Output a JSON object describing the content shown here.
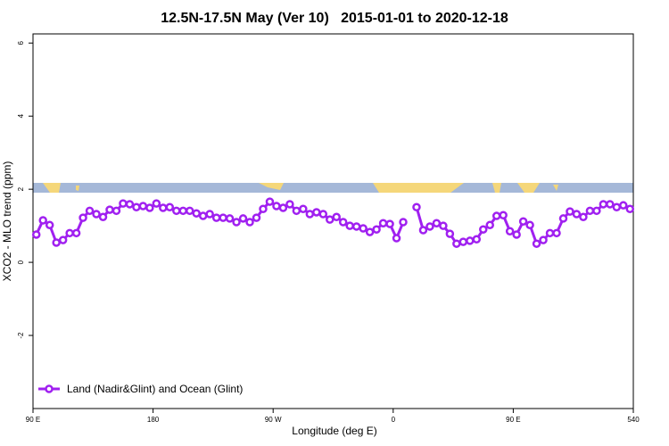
{
  "chart_data": {
    "type": "line",
    "title": "12.5N-17.5N May (Ver 10)   2015-01-01 to 2020-12-18",
    "xlabel": "Longitude (deg E)",
    "ylabel": "XCO2 - MLO trend (ppm)",
    "x": [
      92.5,
      97.5,
      102.5,
      107.5,
      112.5,
      117.5,
      122.5,
      127.5,
      132.5,
      137.5,
      142.5,
      147.5,
      152.5,
      157.5,
      162.5,
      167.5,
      172.5,
      177.5,
      182.5,
      187.5,
      192.5,
      197.5,
      202.5,
      207.5,
      212.5,
      217.5,
      222.5,
      227.5,
      232.5,
      237.5,
      242.5,
      247.5,
      252.5,
      257.5,
      262.5,
      267.5,
      272.5,
      277.5,
      282.5,
      287.5,
      292.5,
      297.5,
      302.5,
      307.5,
      312.5,
      317.5,
      322.5,
      327.5,
      332.5,
      337.5,
      342.5,
      347.5,
      352.5,
      357.5,
      362.5,
      367.5,
      372.5,
      377.5,
      382.5,
      387.5,
      392.5,
      397.5,
      402.5,
      407.5,
      412.5,
      417.5,
      422.5,
      427.5,
      432.5,
      437.5,
      442.5,
      447.5,
      452.5,
      457.5,
      462.5,
      467.5,
      472.5,
      477.5,
      482.5,
      487.5,
      492.5,
      497.5,
      502.5,
      507.5,
      512.5,
      517.5,
      522.5,
      527.5,
      532.5,
      537.5
    ],
    "series": [
      {
        "name": "Land (Nadir&Glint) and Ocean (Glint)",
        "color": "#a020f0",
        "values": [
          0.76,
          1.15,
          1.02,
          0.54,
          0.61,
          0.8,
          0.8,
          1.22,
          1.41,
          1.32,
          1.24,
          1.44,
          1.41,
          1.61,
          1.59,
          1.51,
          1.54,
          1.49,
          1.61,
          1.49,
          1.51,
          1.41,
          1.41,
          1.41,
          1.34,
          1.27,
          1.32,
          1.22,
          1.22,
          1.2,
          1.1,
          1.2,
          1.1,
          1.22,
          1.46,
          1.66,
          1.54,
          1.49,
          1.59,
          1.41,
          1.46,
          1.32,
          1.37,
          1.32,
          1.17,
          1.24,
          1.1,
          1.0,
          0.98,
          0.93,
          0.83,
          0.9,
          1.07,
          1.05,
          0.66,
          1.1,
          null,
          1.51,
          0.88,
          0.98,
          1.07,
          1.0,
          0.78,
          0.51,
          0.56,
          0.59,
          0.63,
          0.9,
          1.02,
          1.27,
          1.29,
          0.85,
          0.76,
          1.12,
          1.02,
          0.51,
          0.61,
          0.8,
          0.8,
          1.2,
          1.39,
          1.32,
          1.24,
          1.41,
          1.41,
          1.59,
          1.59,
          1.51,
          1.56,
          1.46
        ]
      }
    ],
    "xlim": [
      90,
      540
    ],
    "xticks": [
      {
        "value": 90,
        "label": "90 E"
      },
      180,
      {
        "value": 270,
        "label": "90 W"
      },
      {
        "value": 360,
        "label": "0"
      },
      {
        "value": 450,
        "label": "90 E"
      },
      540
    ],
    "ylim": [
      -4,
      6.25
    ],
    "yticks": [
      -2,
      0,
      2,
      4,
      6
    ],
    "legend": "bottom-left"
  }
}
